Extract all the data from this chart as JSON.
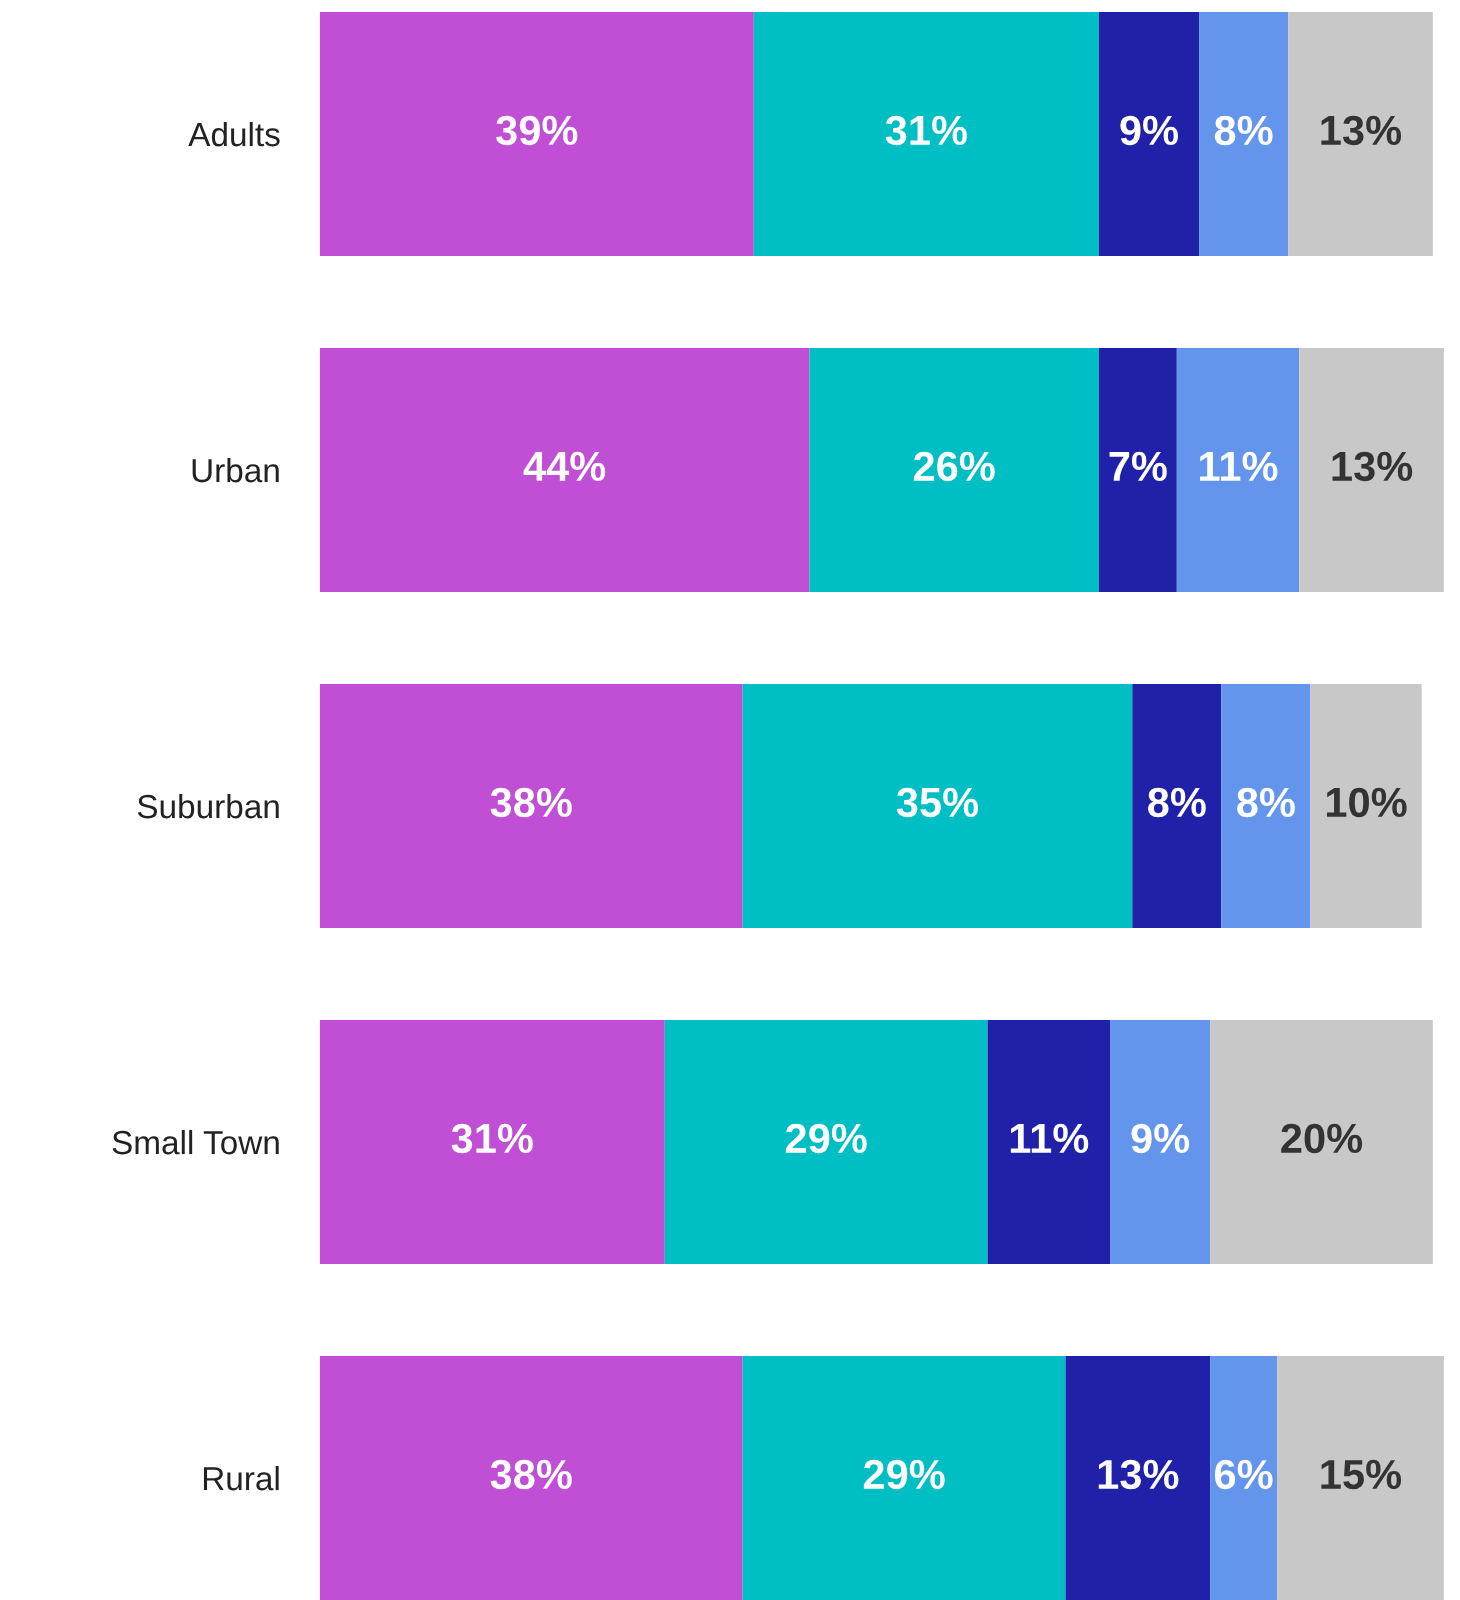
{
  "chart_data": {
    "type": "bar",
    "orientation": "horizontal",
    "stacked": true,
    "grid": false,
    "categories": [
      "Adults",
      "Urban",
      "Suburban",
      "Small Town",
      "Rural"
    ],
    "series": [
      {
        "color": "#c04fd6",
        "values": [
          39,
          44,
          38,
          31,
          38
        ],
        "value_labels": [
          "39%",
          "44%",
          "38%",
          "31%",
          "38%"
        ]
      },
      {
        "color": "#00bfc4",
        "values": [
          31,
          26,
          35,
          29,
          29
        ],
        "value_labels": [
          "31%",
          "26%",
          "35%",
          "29%",
          "29%"
        ]
      },
      {
        "color": "#2020a8",
        "values": [
          9,
          7,
          8,
          11,
          13
        ],
        "value_labels": [
          "9%",
          "7%",
          "8%",
          "11%",
          "13%"
        ]
      },
      {
        "color": "#6495ed",
        "values": [
          8,
          11,
          8,
          9,
          6
        ],
        "value_labels": [
          "8%",
          "11%",
          "8%",
          "9%",
          "6%"
        ]
      },
      {
        "color": "#c8c8c8",
        "values": [
          13,
          13,
          10,
          20,
          15
        ],
        "value_labels": [
          "13%",
          "13%",
          "10%",
          "20%",
          "15%"
        ]
      }
    ]
  }
}
